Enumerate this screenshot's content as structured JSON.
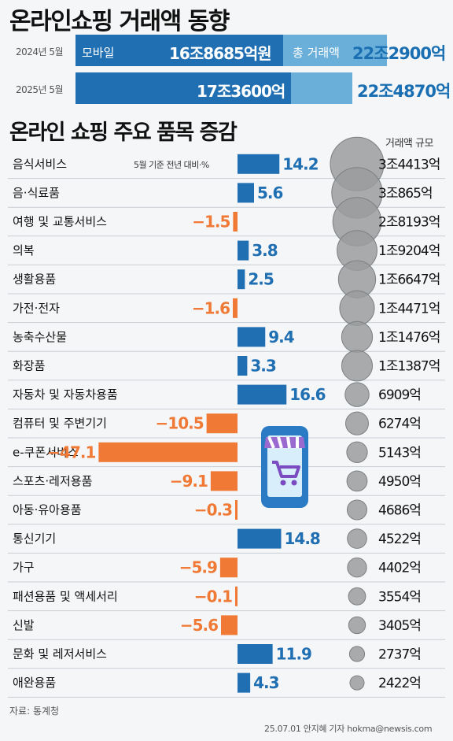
{
  "title": "온라인쇼핑 거래액 동향",
  "overview": {
    "rows": [
      {
        "year": "2024년 5월",
        "mobile_label": "모바일",
        "mobile_value": "16조8685억원",
        "total_label": "총 거래액",
        "total_value": "22조2900억"
      },
      {
        "year": "2025년 5월",
        "mobile_label": "",
        "mobile_value": "17조3600억",
        "total_label": "",
        "total_value": "22조4870억"
      }
    ]
  },
  "subtitle": "온라인 쇼핑 주요 품목 증감",
  "note": "5월 기준 전년 대비·%",
  "column_header": "거래액 규모",
  "source": "자료: 통계청",
  "credit": "25.07.01 안지혜 기자 hokma@newsis.com",
  "colors": {
    "positive": "#1f6fb2",
    "negative": "#f07a35",
    "total_bar": "#6aafd9",
    "circle": "#9a9c9e"
  },
  "chart_data": {
    "type": "bar",
    "categories": [
      "음식서비스",
      "음·식료품",
      "여행 및 교통서비스",
      "의복",
      "생활용품",
      "가전·전자",
      "농축수산물",
      "화장품",
      "자동차 및 자동차용품",
      "컴퓨터 및 주변기기",
      "e-쿠폰서비스",
      "스포츠·레저용품",
      "아동·유아용품",
      "통신기기",
      "가구",
      "패션용품 및 액세서리",
      "신발",
      "문화 및 레저서비스",
      "애완용품"
    ],
    "values": [
      14.2,
      5.6,
      -1.5,
      3.8,
      2.5,
      -1.6,
      9.4,
      3.3,
      16.6,
      -10.5,
      -47.1,
      -9.1,
      -0.3,
      14.8,
      -5.9,
      -0.1,
      -5.6,
      11.9,
      4.3
    ],
    "value_labels": [
      "14.2",
      "5.6",
      "−1.5",
      "3.8",
      "2.5",
      "−1.6",
      "9.4",
      "3.3",
      "16.6",
      "−10.5",
      "−47.1",
      "−9.1",
      "−0.3",
      "14.8",
      "−5.9",
      "−0.1",
      "−5.6",
      "11.9",
      "4.3"
    ],
    "amounts": [
      "3조4413억",
      "3조865억",
      "2조8193억",
      "1조9204억",
      "1조6647억",
      "1조4471억",
      "1조1476억",
      "1조1387억",
      "6909억",
      "6274억",
      "5143억",
      "4950억",
      "4686억",
      "4522억",
      "4402억",
      "3554억",
      "3405억",
      "2737억",
      "2422억"
    ],
    "amount_values_eok": [
      34413,
      30865,
      28193,
      19204,
      16647,
      14471,
      11476,
      11387,
      6909,
      6274,
      5143,
      4950,
      4686,
      4522,
      4402,
      3554,
      3405,
      2737,
      2422
    ]
  }
}
